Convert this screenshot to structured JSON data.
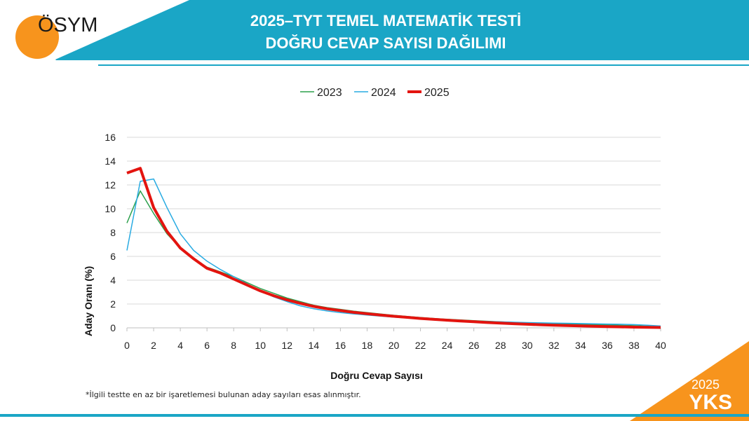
{
  "header": {
    "title_line1": "2025–TYT TEMEL MATEMATİK TESTİ",
    "title_line2": "DOĞRU CEVAP SAYISI DAĞILIMI"
  },
  "logo": {
    "text": "ÖSYM"
  },
  "badge": {
    "year": "2025",
    "label": "YKS"
  },
  "footnote": "*İlgili testte en az bir işaretlemesi bulunan aday sayıları esas alınmıştır.",
  "colors": {
    "banner": "#1aa6c6",
    "accent": "#f7941d",
    "series_2023": "#2ca04c",
    "series_2024": "#29abe2",
    "series_2025": "#e3140f"
  },
  "chart_data": {
    "type": "line",
    "xlabel": "Doğru Cevap Sayısı",
    "ylabel": "Aday Oranı (%)",
    "xlim": [
      0,
      40
    ],
    "ylim": [
      0,
      16
    ],
    "xticks": [
      0,
      2,
      4,
      6,
      8,
      10,
      12,
      14,
      16,
      18,
      20,
      22,
      24,
      26,
      28,
      30,
      32,
      34,
      36,
      38,
      40
    ],
    "yticks": [
      0,
      2,
      4,
      6,
      8,
      10,
      12,
      14,
      16
    ],
    "grid": true,
    "legend_position": "top",
    "x": [
      0,
      1,
      2,
      3,
      4,
      5,
      6,
      7,
      8,
      9,
      10,
      11,
      12,
      13,
      14,
      15,
      16,
      17,
      18,
      19,
      20,
      21,
      22,
      23,
      24,
      25,
      26,
      27,
      28,
      29,
      30,
      31,
      32,
      33,
      34,
      35,
      36,
      37,
      38,
      39,
      40
    ],
    "series": [
      {
        "name": "2023",
        "values": [
          8.8,
          11.5,
          9.6,
          7.9,
          6.7,
          5.8,
          5.1,
          4.7,
          4.3,
          3.8,
          3.3,
          2.9,
          2.5,
          2.2,
          1.9,
          1.7,
          1.55,
          1.4,
          1.28,
          1.16,
          1.05,
          0.96,
          0.87,
          0.79,
          0.72,
          0.66,
          0.6,
          0.55,
          0.5,
          0.46,
          0.42,
          0.39,
          0.36,
          0.33,
          0.3,
          0.27,
          0.24,
          0.21,
          0.18,
          0.14,
          0.08
        ]
      },
      {
        "name": "2024",
        "values": [
          6.5,
          12.3,
          12.5,
          10.1,
          7.9,
          6.5,
          5.6,
          4.9,
          4.3,
          3.7,
          3.1,
          2.6,
          2.2,
          1.85,
          1.6,
          1.42,
          1.28,
          1.17,
          1.07,
          0.98,
          0.9,
          0.83,
          0.77,
          0.71,
          0.66,
          0.61,
          0.57,
          0.53,
          0.5,
          0.47,
          0.44,
          0.42,
          0.4,
          0.38,
          0.36,
          0.34,
          0.32,
          0.3,
          0.27,
          0.22,
          0.15
        ]
      },
      {
        "name": "2025",
        "values": [
          13.0,
          13.4,
          10.1,
          8.1,
          6.7,
          5.8,
          5.0,
          4.6,
          4.1,
          3.6,
          3.1,
          2.7,
          2.35,
          2.05,
          1.8,
          1.6,
          1.45,
          1.3,
          1.18,
          1.07,
          0.97,
          0.88,
          0.79,
          0.71,
          0.64,
          0.57,
          0.51,
          0.45,
          0.4,
          0.35,
          0.3,
          0.26,
          0.22,
          0.19,
          0.16,
          0.13,
          0.1,
          0.08,
          0.06,
          0.04,
          0.03
        ]
      }
    ]
  }
}
